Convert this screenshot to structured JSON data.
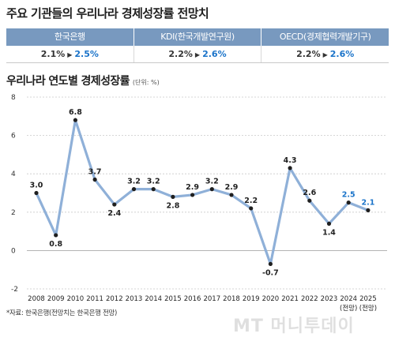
{
  "title": "주요 기관들의 우리나라 경제성장률 전망치",
  "outlook": [
    {
      "org": "한국은행",
      "from": "2.1%",
      "to": "2.5%"
    },
    {
      "org": "KDI(한국개발연구원)",
      "from": "2.2%",
      "to": "2.6%"
    },
    {
      "org": "OECD(경제협력개발기구)",
      "from": "2.2%",
      "to": "2.6%"
    }
  ],
  "chart_title": "우리나라 연도별 경제성장률",
  "unit": "(단위: %)",
  "source": "*자료: 한국은행(전망치는 한국은행 전망)",
  "watermark": "MT 머니투데이",
  "colors": {
    "header": "#7899bf",
    "line": "#8fb0d8",
    "forecast_label": "#1a73c9",
    "text": "#1f1f1f"
  },
  "chart_data": {
    "type": "line",
    "x": [
      "2008",
      "2009",
      "2010",
      "2011",
      "2012",
      "2013",
      "2014",
      "2015",
      "2016",
      "2017",
      "2018",
      "2019",
      "2020",
      "2021",
      "2022",
      "2023",
      "2024",
      "2025"
    ],
    "x_sublabels": {
      "2024": "(전망)",
      "2025": "(전망)"
    },
    "values": [
      3.0,
      0.8,
      6.8,
      3.7,
      2.4,
      3.2,
      3.2,
      2.8,
      2.9,
      3.2,
      2.9,
      2.2,
      -0.7,
      4.3,
      2.6,
      1.4,
      2.5,
      2.1
    ],
    "labels": [
      "3.0",
      "0.8",
      "6.8",
      "3.7",
      "2.4",
      "3.2",
      "3.2",
      "2.8",
      "2.9",
      "3.2",
      "2.9",
      "2.2",
      "-0.7",
      "4.3",
      "2.6",
      "1.4",
      "2.5",
      "2.1"
    ],
    "forecast_years": [
      "2024",
      "2025"
    ],
    "yticks": [
      8,
      6,
      4,
      2,
      0,
      -2
    ],
    "ylim": [
      -2,
      8
    ],
    "grid": "horizontal",
    "legend": "none"
  }
}
